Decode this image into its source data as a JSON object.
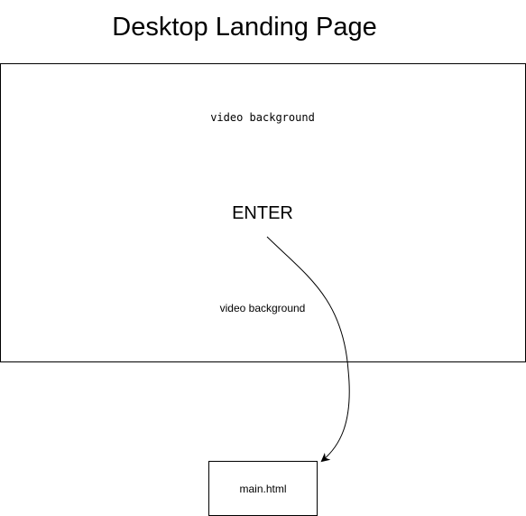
{
  "diagram": {
    "title": "Desktop Landing Page",
    "landing_frame": {
      "top_label": "video background",
      "enter_label": "ENTER",
      "bottom_label": "video background"
    },
    "target": {
      "label": "main.html"
    }
  },
  "colors": {
    "stroke": "#000000",
    "background": "#ffffff"
  },
  "icons": {
    "connector": "curved-arrow"
  }
}
